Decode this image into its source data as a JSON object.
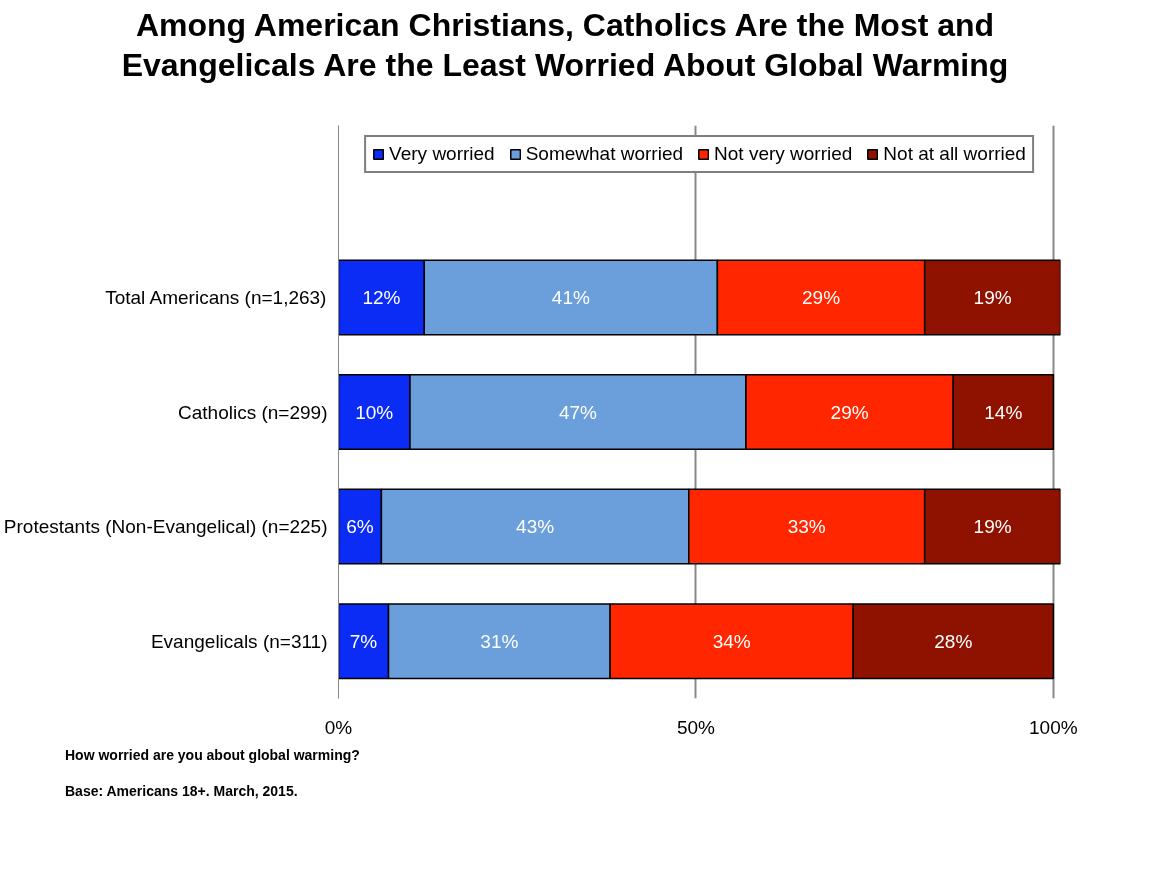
{
  "chart_data": {
    "type": "bar",
    "orientation": "horizontal",
    "stacked": true,
    "title": "Among American Christians, Catholics Are the Most and Evangelicals Are the Least Worried About Global Warming",
    "categories": [
      "Total Americans (n=1,263)",
      "Catholics (n=299)",
      "Protestants (Non-Evangelical) (n=225)",
      "Evangelicals (n=311)"
    ],
    "series": [
      {
        "name": "Very worried",
        "color": "#0a2cf5",
        "values": [
          12,
          10,
          6,
          7
        ],
        "value_labels": [
          "12%",
          "10%",
          "6%",
          "7%"
        ]
      },
      {
        "name": "Somewhat worried",
        "color": "#6a9fdc",
        "values": [
          41,
          47,
          43,
          31
        ],
        "value_labels": [
          "41%",
          "47%",
          "43%",
          "31%"
        ]
      },
      {
        "name": "Not very worried",
        "color": "#ff2600",
        "values": [
          29,
          29,
          33,
          34
        ],
        "value_labels": [
          "29%",
          "29%",
          "33%",
          "34%"
        ]
      },
      {
        "name": "Not at all worried",
        "color": "#8f1200",
        "values": [
          19,
          14,
          19,
          28
        ],
        "value_labels": [
          "19%",
          "14%",
          "19%",
          "28%"
        ]
      }
    ],
    "xlim": [
      0,
      101
    ],
    "xticks": [
      {
        "value": 0,
        "label": "0%"
      },
      {
        "value": 50,
        "label": "50%"
      },
      {
        "value": 100,
        "label": "100%"
      }
    ],
    "grid": "x",
    "legend": "top",
    "annotations": [
      "How worried are you about global warming?",
      "Base: Americans 18+. March, 2015."
    ]
  }
}
